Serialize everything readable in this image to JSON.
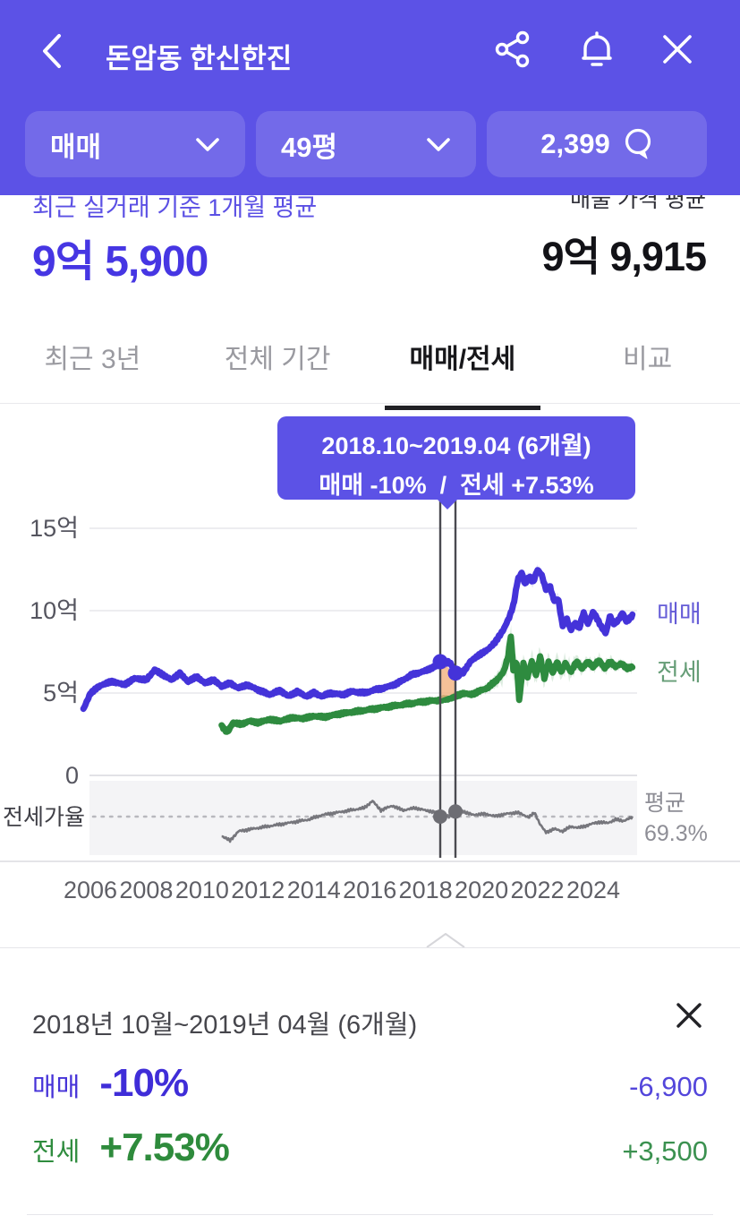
{
  "header": {
    "title": "돈암동 한신한진",
    "filters": {
      "trade_type": "매매",
      "size": "49평",
      "comment_count": "2,399"
    }
  },
  "summary": {
    "recent_label": "최근 실거래 기준 1개월 평균",
    "recent_value": "9억 5,900",
    "listing_label": "매물 가격 평균",
    "listing_value": "9억 9,915"
  },
  "tabs": {
    "items": [
      {
        "label": "최근 3년",
        "active": false
      },
      {
        "label": "전체 기간",
        "active": false
      },
      {
        "label": "매매/전세",
        "active": true
      },
      {
        "label": "비교",
        "active": false
      }
    ]
  },
  "tooltip": {
    "line1": "2018.10~2019.04 (6개월)",
    "line2": "매매 -10%  /  전세 +7.53%"
  },
  "chart_data": {
    "type": "line",
    "y_ticks": [
      {
        "label": "15억",
        "value": 15
      },
      {
        "label": "10억",
        "value": 10
      },
      {
        "label": "5억",
        "value": 5
      },
      {
        "label": "0",
        "value": 0
      }
    ],
    "x_ticks": [
      "2006",
      "2008",
      "2010",
      "2012",
      "2014",
      "2016",
      "2018",
      "2020",
      "2022",
      "2024"
    ],
    "ratio_axis_label": "전세가율",
    "average": {
      "label": "평균",
      "text": "69.3%",
      "value": 69.3
    },
    "series": [
      {
        "name": "매매",
        "color": "#4433D9",
        "unit": "억",
        "points": [
          [
            2005.75,
            4.0
          ],
          [
            2006.0,
            5.0
          ],
          [
            2006.4,
            5.5
          ],
          [
            2006.8,
            5.7
          ],
          [
            2007.2,
            5.5
          ],
          [
            2007.6,
            5.9
          ],
          [
            2008.0,
            5.8
          ],
          [
            2008.3,
            6.4
          ],
          [
            2008.6,
            6.1
          ],
          [
            2008.9,
            5.8
          ],
          [
            2009.2,
            6.2
          ],
          [
            2009.5,
            5.7
          ],
          [
            2009.8,
            6.0
          ],
          [
            2010.1,
            5.6
          ],
          [
            2010.4,
            5.8
          ],
          [
            2010.7,
            5.4
          ],
          [
            2011.0,
            5.6
          ],
          [
            2011.3,
            5.3
          ],
          [
            2011.6,
            5.5
          ],
          [
            2012.0,
            5.2
          ],
          [
            2012.4,
            4.9
          ],
          [
            2012.8,
            5.15
          ],
          [
            2013.1,
            4.8
          ],
          [
            2013.4,
            5.1
          ],
          [
            2013.7,
            4.8
          ],
          [
            2014.0,
            5.0
          ],
          [
            2014.3,
            4.8
          ],
          [
            2014.6,
            5.0
          ],
          [
            2015.0,
            4.9
          ],
          [
            2015.4,
            5.1
          ],
          [
            2015.8,
            5.0
          ],
          [
            2016.2,
            5.2
          ],
          [
            2016.6,
            5.35
          ],
          [
            2017.0,
            5.6
          ],
          [
            2017.5,
            6.1
          ],
          [
            2018.0,
            6.35
          ],
          [
            2018.3,
            6.6
          ],
          [
            2018.6,
            6.7
          ],
          [
            2018.83,
            6.9
          ],
          [
            2019.05,
            6.45
          ],
          [
            2019.33,
            6.21
          ],
          [
            2019.6,
            6.9
          ],
          [
            2019.9,
            7.3
          ],
          [
            2020.2,
            7.6
          ],
          [
            2020.5,
            8.1
          ],
          [
            2020.8,
            8.9
          ],
          [
            2021.0,
            9.6
          ],
          [
            2021.15,
            10.4
          ],
          [
            2021.3,
            11.9
          ],
          [
            2021.45,
            12.3
          ],
          [
            2021.55,
            11.6
          ],
          [
            2021.7,
            12.1
          ],
          [
            2021.85,
            11.7
          ],
          [
            2022.0,
            12.5
          ],
          [
            2022.15,
            12.2
          ],
          [
            2022.3,
            11.3
          ],
          [
            2022.45,
            11.5
          ],
          [
            2022.6,
            10.6
          ],
          [
            2022.75,
            10.7
          ],
          [
            2022.9,
            9.1
          ],
          [
            2023.05,
            9.5
          ],
          [
            2023.2,
            8.8
          ],
          [
            2023.35,
            9.3
          ],
          [
            2023.5,
            8.9
          ],
          [
            2023.65,
            9.9
          ],
          [
            2023.8,
            9.2
          ],
          [
            2024.0,
            9.9
          ],
          [
            2024.15,
            9.5
          ],
          [
            2024.3,
            9.0
          ],
          [
            2024.45,
            8.6
          ],
          [
            2024.6,
            9.7
          ],
          [
            2024.75,
            9.2
          ],
          [
            2024.9,
            9.4
          ],
          [
            2025.05,
            9.9
          ],
          [
            2025.2,
            9.3
          ],
          [
            2025.4,
            9.7
          ]
        ],
        "range_band": [
          [
            2005.8,
            0.3
          ],
          [
            2008,
            0.35
          ],
          [
            2011,
            0.3
          ],
          [
            2013,
            0.15
          ],
          [
            2016,
            0.1
          ],
          [
            2018,
            0.25
          ],
          [
            2019.5,
            0.2
          ],
          [
            2021,
            0.3
          ],
          [
            2022,
            0.5
          ],
          [
            2023,
            0.45
          ],
          [
            2025.4,
            0.35
          ]
        ]
      },
      {
        "name": "전세",
        "color": "#2E8B3F",
        "unit": "억",
        "points": [
          [
            2010.7,
            3.0
          ],
          [
            2010.9,
            2.6
          ],
          [
            2011.1,
            3.2
          ],
          [
            2011.4,
            3.1
          ],
          [
            2011.7,
            3.3
          ],
          [
            2012.0,
            3.2
          ],
          [
            2012.4,
            3.4
          ],
          [
            2012.8,
            3.3
          ],
          [
            2013.2,
            3.5
          ],
          [
            2013.6,
            3.45
          ],
          [
            2014.0,
            3.6
          ],
          [
            2014.4,
            3.55
          ],
          [
            2014.8,
            3.7
          ],
          [
            2015.2,
            3.8
          ],
          [
            2015.6,
            3.9
          ],
          [
            2016.0,
            4.0
          ],
          [
            2016.4,
            4.1
          ],
          [
            2016.8,
            4.2
          ],
          [
            2017.2,
            4.3
          ],
          [
            2017.6,
            4.4
          ],
          [
            2018.0,
            4.5
          ],
          [
            2018.4,
            4.55
          ],
          [
            2018.83,
            4.65
          ],
          [
            2019.1,
            4.8
          ],
          [
            2019.33,
            5.0
          ],
          [
            2019.6,
            4.9
          ],
          [
            2019.9,
            5.1
          ],
          [
            2020.2,
            5.3
          ],
          [
            2020.5,
            5.7
          ],
          [
            2020.8,
            6.3
          ],
          [
            2020.95,
            7.2
          ],
          [
            2021.05,
            8.5
          ],
          [
            2021.15,
            6.2
          ],
          [
            2021.25,
            7.0
          ],
          [
            2021.35,
            4.6
          ],
          [
            2021.5,
            6.8
          ],
          [
            2021.65,
            6.0
          ],
          [
            2021.8,
            6.9
          ],
          [
            2021.95,
            6.1
          ],
          [
            2022.1,
            7.2
          ],
          [
            2022.25,
            5.9
          ],
          [
            2022.4,
            6.9
          ],
          [
            2022.55,
            6.2
          ],
          [
            2022.7,
            6.9
          ],
          [
            2022.85,
            6.3
          ],
          [
            2023.0,
            6.8
          ],
          [
            2023.2,
            6.3
          ],
          [
            2023.4,
            6.9
          ],
          [
            2023.6,
            6.5
          ],
          [
            2023.8,
            6.9
          ],
          [
            2024.0,
            6.6
          ],
          [
            2024.2,
            7.0
          ],
          [
            2024.4,
            6.5
          ],
          [
            2024.6,
            6.9
          ],
          [
            2024.8,
            6.6
          ],
          [
            2025.0,
            6.8
          ],
          [
            2025.2,
            6.5
          ],
          [
            2025.4,
            6.6
          ]
        ],
        "range_band": [
          [
            2010.7,
            0.25
          ],
          [
            2013,
            0.2
          ],
          [
            2016,
            0.15
          ],
          [
            2018,
            0.2
          ],
          [
            2019.5,
            0.3
          ],
          [
            2020.5,
            0.6
          ],
          [
            2021,
            1.2
          ],
          [
            2021.5,
            0.9
          ],
          [
            2022,
            1.0
          ],
          [
            2022.8,
            0.9
          ],
          [
            2023.5,
            0.7
          ],
          [
            2024.3,
            0.6
          ],
          [
            2025.4,
            0.5
          ]
        ]
      },
      {
        "name": "전세가율",
        "color": "#76767C",
        "unit": "%",
        "points": [
          [
            2010.7,
            61
          ],
          [
            2011.0,
            59
          ],
          [
            2011.3,
            63
          ],
          [
            2011.8,
            64
          ],
          [
            2012.3,
            65
          ],
          [
            2012.8,
            66
          ],
          [
            2013.3,
            67
          ],
          [
            2013.8,
            68
          ],
          [
            2014.3,
            70
          ],
          [
            2014.8,
            71
          ],
          [
            2015.3,
            72
          ],
          [
            2015.8,
            73
          ],
          [
            2016.1,
            76
          ],
          [
            2016.4,
            72
          ],
          [
            2016.8,
            74
          ],
          [
            2017.2,
            72
          ],
          [
            2017.6,
            73
          ],
          [
            2018.0,
            72
          ],
          [
            2018.4,
            71
          ],
          [
            2018.83,
            69.3
          ],
          [
            2019.1,
            72
          ],
          [
            2019.33,
            71.5
          ],
          [
            2019.7,
            70
          ],
          [
            2020.1,
            70.5
          ],
          [
            2020.5,
            69.5
          ],
          [
            2020.9,
            70.5
          ],
          [
            2021.3,
            71
          ],
          [
            2021.7,
            69
          ],
          [
            2021.9,
            71
          ],
          [
            2022.1,
            66
          ],
          [
            2022.3,
            62.5
          ],
          [
            2022.6,
            64
          ],
          [
            2022.9,
            63
          ],
          [
            2023.2,
            65
          ],
          [
            2023.5,
            64.5
          ],
          [
            2023.9,
            66
          ],
          [
            2024.2,
            67
          ],
          [
            2024.5,
            66.5
          ],
          [
            2024.8,
            68
          ],
          [
            2025.1,
            67.5
          ],
          [
            2025.4,
            69
          ]
        ]
      }
    ],
    "selection": {
      "start_year": 2018.83,
      "end_year": 2019.33,
      "sale_values": [
        6.9,
        6.21
      ],
      "jeonse_values": [
        4.65,
        5.0
      ],
      "ratio_values": [
        69.3,
        71.5
      ],
      "highlight_color": "#F2B27E"
    },
    "legend": {
      "sale": "매매",
      "jeonse": "전세"
    }
  },
  "detail_panel": {
    "title": "2018년 10월~2019년 04월 (6개월)",
    "rows": [
      {
        "label": "매매",
        "percent": "-10%",
        "amount": "-6,900"
      },
      {
        "label": "전세",
        "percent": "+7.53%",
        "amount": "+3,500"
      }
    ]
  },
  "colors": {
    "brand": "#5C52E6",
    "sale_blue": "#4433D9",
    "jeonse_green": "#2E8B3F"
  }
}
